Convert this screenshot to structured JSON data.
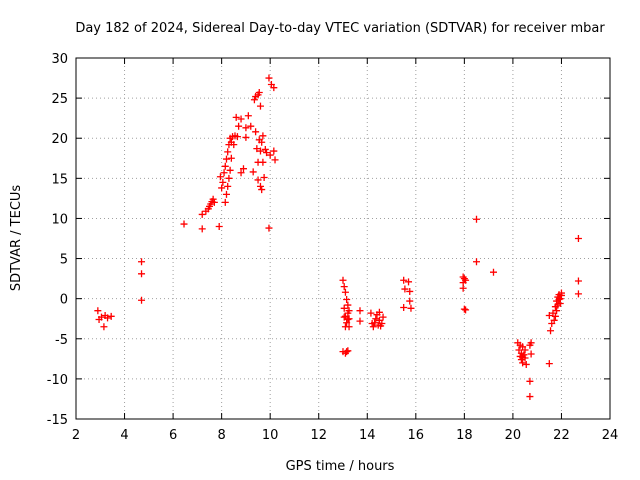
{
  "chart_data": {
    "type": "scatter",
    "title": "Day 182 of 2024, Sidereal Day-to-day VTEC variation (SDTVAR) for receiver mbar",
    "xlabel": "GPS time / hours",
    "ylabel": "SDTVAR / TECUs",
    "xlim": [
      2,
      24
    ],
    "ylim": [
      -15,
      30
    ],
    "xticks": [
      2,
      4,
      6,
      8,
      10,
      12,
      14,
      16,
      18,
      20,
      22,
      24
    ],
    "yticks": [
      -15,
      -10,
      -5,
      0,
      5,
      10,
      15,
      20,
      25,
      30
    ],
    "marker": "+",
    "series": [
      {
        "name": "SDTVAR",
        "color": "#ff0000",
        "x": [
          2.9,
          2.95,
          3.05,
          3.15,
          3.2,
          3.3,
          3.45,
          4.7,
          4.7,
          4.7,
          6.45,
          7.2,
          7.2,
          7.35,
          7.45,
          7.5,
          7.55,
          7.6,
          7.65,
          7.7,
          7.9,
          7.95,
          8.0,
          8.05,
          8.1,
          8.15,
          8.15,
          8.2,
          8.2,
          8.25,
          8.25,
          8.3,
          8.3,
          8.35,
          8.35,
          8.4,
          8.4,
          8.45,
          8.5,
          8.55,
          8.6,
          8.65,
          8.7,
          8.8,
          8.8,
          8.9,
          9.0,
          9.0,
          9.1,
          9.2,
          9.3,
          9.35,
          9.4,
          9.4,
          9.45,
          9.5,
          9.5,
          9.5,
          9.55,
          9.55,
          9.6,
          9.6,
          9.6,
          9.65,
          9.65,
          9.7,
          9.7,
          9.75,
          9.8,
          9.85,
          9.95,
          9.95,
          10.0,
          10.05,
          10.15,
          10.2,
          10.15,
          13.0,
          13.0,
          13.05,
          13.05,
          13.05,
          13.1,
          13.1,
          13.1,
          13.1,
          13.15,
          13.15,
          13.15,
          13.2,
          13.2,
          13.2,
          13.2,
          13.25,
          13.25,
          13.25,
          13.7,
          13.7,
          14.15,
          14.2,
          14.25,
          14.3,
          14.35,
          14.4,
          14.45,
          14.5,
          14.5,
          14.55,
          14.6,
          14.65,
          15.5,
          15.5,
          15.55,
          15.7,
          15.75,
          15.75,
          15.8,
          17.95,
          17.95,
          17.95,
          18.0,
          18.0,
          18.05,
          18.05,
          18.5,
          18.5,
          19.2,
          20.2,
          20.25,
          20.3,
          20.3,
          20.35,
          20.35,
          20.4,
          20.4,
          20.4,
          20.45,
          20.5,
          20.5,
          20.55,
          20.7,
          20.7,
          20.7,
          20.75,
          20.75,
          21.5,
          21.5,
          21.55,
          21.6,
          21.65,
          21.7,
          21.75,
          21.75,
          21.8,
          21.8,
          21.85,
          21.85,
          21.9,
          21.9,
          21.95,
          21.95,
          22.0,
          22.0,
          22.7,
          22.7,
          22.7
        ],
        "y": [
          -1.5,
          -2.6,
          -2.3,
          -3.5,
          -2.1,
          -2.4,
          -2.2,
          4.6,
          3.1,
          -0.2,
          9.3,
          10.5,
          8.7,
          10.9,
          11.2,
          11.5,
          11.8,
          12.1,
          12.4,
          12.0,
          9.0,
          15.2,
          13.8,
          14.5,
          15.7,
          16.5,
          12.0,
          17.4,
          13.0,
          18.3,
          14.0,
          19.2,
          15.0,
          20.0,
          16.0,
          19.5,
          17.5,
          20.2,
          19.2,
          20.3,
          22.6,
          20.2,
          21.5,
          22.4,
          15.7,
          16.2,
          20.1,
          21.3,
          22.8,
          21.5,
          15.8,
          24.8,
          25.2,
          20.8,
          18.7,
          25.4,
          14.8,
          17.0,
          25.7,
          19.8,
          24.0,
          14.0,
          18.4,
          19.5,
          13.6,
          20.3,
          17.0,
          15.1,
          18.6,
          18.2,
          8.8,
          27.5,
          17.9,
          26.7,
          26.3,
          17.3,
          18.4,
          2.3,
          -6.6,
          1.5,
          -1.2,
          -2.3,
          0.8,
          -6.8,
          -3.5,
          -2.2,
          -0.1,
          -6.6,
          -3.0,
          -0.8,
          -6.5,
          -1.8,
          -2.6,
          -1.5,
          -3.5,
          -2.5,
          -1.5,
          -2.8,
          -1.8,
          -3.1,
          -3.5,
          -3.0,
          -2.5,
          -2.0,
          -3.3,
          -2.7,
          -1.7,
          -3.4,
          -3.1,
          -2.3,
          2.3,
          -1.1,
          1.2,
          2.1,
          -0.3,
          0.9,
          -1.2,
          2.7,
          2.0,
          1.3,
          2.5,
          -1.3,
          2.3,
          -1.4,
          9.9,
          4.6,
          3.3,
          -5.5,
          -6.4,
          -7.2,
          -5.8,
          -6.8,
          -7.6,
          -6.0,
          -7.3,
          -8.0,
          -7.0,
          -6.4,
          -7.4,
          -8.2,
          -12.2,
          -10.3,
          -5.8,
          -5.5,
          -6.9,
          -8.1,
          -2.1,
          -4.0,
          -3.1,
          -1.8,
          -2.7,
          -1.0,
          -2.2,
          -0.3,
          -1.5,
          0.2,
          -0.8,
          0.5,
          -0.1,
          0.0,
          -0.6,
          0.4,
          0.7,
          7.5,
          2.2,
          0.6
        ]
      }
    ]
  }
}
